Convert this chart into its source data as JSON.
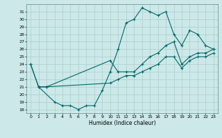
{
  "xlabel": "Humidex (Indice chaleur)",
  "bg_color": "#cce8e8",
  "grid_color": "#aacece",
  "line_color": "#006666",
  "xlim": [
    -0.5,
    23.5
  ],
  "ylim": [
    17.5,
    32.0
  ],
  "xticks": [
    0,
    1,
    2,
    3,
    4,
    5,
    6,
    7,
    8,
    9,
    10,
    11,
    12,
    13,
    14,
    15,
    16,
    17,
    18,
    19,
    20,
    21,
    22,
    23
  ],
  "yticks": [
    18,
    19,
    20,
    21,
    22,
    23,
    24,
    25,
    26,
    27,
    28,
    29,
    30,
    31
  ],
  "line1_x": [
    0,
    1,
    3,
    4,
    5,
    6,
    7,
    8,
    9,
    10,
    11,
    12,
    13,
    14,
    15,
    16,
    17,
    18,
    19,
    20,
    21,
    22,
    23
  ],
  "line1_y": [
    24,
    21,
    19,
    18.5,
    18.5,
    18,
    18.5,
    18.5,
    20.5,
    23,
    26,
    29.5,
    30,
    31.5,
    31,
    30.5,
    31,
    28,
    26.5,
    28.5,
    28,
    26.5,
    26
  ],
  "line2_x": [
    0,
    1,
    2,
    10,
    11,
    12,
    13,
    14,
    15,
    16,
    17,
    18,
    19,
    20,
    21,
    22,
    23
  ],
  "line2_y": [
    24,
    21,
    21,
    24.5,
    23,
    23,
    23,
    24,
    25,
    25.5,
    26.5,
    27,
    24,
    25,
    25.5,
    25.5,
    26
  ],
  "line3_x": [
    1,
    2,
    10,
    11,
    12,
    13,
    14,
    15,
    16,
    17,
    18,
    19,
    20,
    21,
    22,
    23
  ],
  "line3_y": [
    21,
    21,
    21.5,
    22,
    22.5,
    22.5,
    23,
    23.5,
    24,
    25,
    25,
    23.5,
    24.5,
    25,
    25,
    25.5
  ]
}
